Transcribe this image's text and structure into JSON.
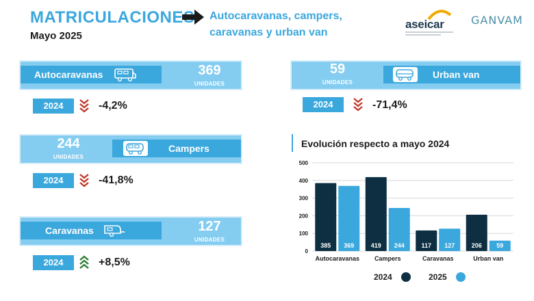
{
  "header": {
    "title": "MATRICULACIONES",
    "date": "Mayo 2025",
    "headline_line1": "Autocaravanas, campers,",
    "headline_line2": "caravanas y urban van",
    "logo_aseicar": "aseicar",
    "logo_ganvam": "GANVAM"
  },
  "colors": {
    "accent": "#3aa7dd",
    "light": "#84cdf1",
    "panel": "#dceef8",
    "dark": "#0e2f42",
    "down": "#c0392b",
    "up": "#2e7d32"
  },
  "panels": {
    "autocaravanas": {
      "label": "Autocaravanas",
      "value": "369",
      "units": "UNIDADES",
      "year": "2024",
      "change": "-4,2%",
      "trend": "down",
      "icon": "motorhome-icon"
    },
    "urban_van": {
      "label": "Urban van",
      "value": "59",
      "units": "UNIDADES",
      "year": "2024",
      "change": "-71,4%",
      "trend": "down",
      "icon": "van-icon"
    },
    "campers": {
      "label": "Campers",
      "value": "244",
      "units": "UNIDADES",
      "year": "2024",
      "change": "-41,8%",
      "trend": "down",
      "icon": "camper-icon"
    },
    "caravanas": {
      "label": "Caravanas",
      "value": "127",
      "units": "UNIDADES",
      "year": "2024",
      "change": "+8,5%",
      "trend": "up",
      "icon": "caravan-icon"
    }
  },
  "chart_data": {
    "type": "bar",
    "title": "Evolución respecto a mayo 2024",
    "categories": [
      "Autocaravanas",
      "Campers",
      "Caravanas",
      "Urban van"
    ],
    "series": [
      {
        "name": "2024",
        "values": [
          385,
          419,
          117,
          206
        ],
        "color": "#0e2f42"
      },
      {
        "name": "2025",
        "values": [
          369,
          244,
          127,
          59
        ],
        "color": "#3aa7dd"
      }
    ],
    "yticks": [
      0,
      100,
      200,
      300,
      400,
      500
    ],
    "ylim": [
      0,
      500
    ],
    "grid": true,
    "legend": "bottom"
  }
}
